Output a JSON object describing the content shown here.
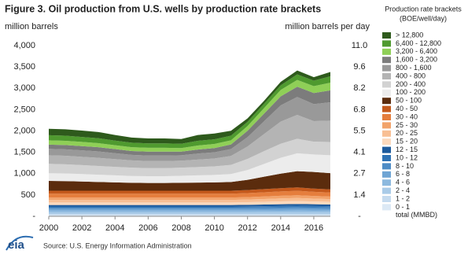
{
  "chart_data": {
    "type": "stacked_area",
    "title": "Figure 3. Oil production from U.S. wells by production rate brackets",
    "y_label": "million barrels",
    "y2_label": "million barrels per day",
    "legend_title": "Production rate brackets",
    "legend_subtitle": "(BOE/well/day)",
    "legend_extra": "total (MMBD)",
    "source": "Source:  U.S. Energy Information Administration",
    "logo": "eia",
    "x": [
      2000,
      2001,
      2002,
      2003,
      2004,
      2005,
      2006,
      2007,
      2008,
      2009,
      2010,
      2011,
      2012,
      2013,
      2014,
      2015,
      2016,
      2017
    ],
    "xlim": [
      2000,
      2017
    ],
    "xticks": [
      2000,
      2002,
      2004,
      2006,
      2008,
      2010,
      2012,
      2014,
      2016
    ],
    "ylim": [
      0,
      4000
    ],
    "yticks": [
      {
        "value": 0,
        "label": "-"
      },
      500,
      {
        "value": 1000,
        "label": "1,000"
      },
      {
        "value": 1500,
        "label": "1,500"
      },
      {
        "value": 2000,
        "label": "2,000"
      },
      {
        "value": 2500,
        "label": "2,500"
      },
      {
        "value": 3000,
        "label": "3,000"
      },
      {
        "value": 3500,
        "label": "3,500"
      },
      {
        "value": 4000,
        "label": "4,000"
      }
    ],
    "y2lim": [
      0,
      10.96
    ],
    "y2ticks": [
      {
        "value": 0,
        "label": "-"
      },
      {
        "value": 1.37,
        "label": "1.4"
      },
      {
        "value": 2.74,
        "label": "2.7"
      },
      {
        "value": 4.11,
        "label": "4.1"
      },
      {
        "value": 5.48,
        "label": "5.5"
      },
      {
        "value": 6.85,
        "label": "6.8"
      },
      {
        "value": 8.22,
        "label": "8.2"
      },
      {
        "value": 9.59,
        "label": "9.6"
      },
      {
        "value": 10.96,
        "label": "11.0"
      }
    ],
    "series": [
      {
        "name": "0 - 1",
        "color": "#dce9f5",
        "values": [
          25,
          25,
          25,
          25,
          25,
          25,
          25,
          25,
          25,
          25,
          25,
          25,
          25,
          25,
          25,
          25,
          25,
          25
        ]
      },
      {
        "name": "1 - 2",
        "color": "#c5dbef",
        "values": [
          25,
          25,
          25,
          25,
          25,
          25,
          25,
          25,
          25,
          25,
          25,
          25,
          25,
          25,
          25,
          25,
          25,
          25
        ]
      },
      {
        "name": "2 - 4",
        "color": "#a9cbe8",
        "values": [
          45,
          45,
          45,
          45,
          45,
          45,
          45,
          45,
          45,
          45,
          45,
          45,
          45,
          46,
          47,
          48,
          47,
          46
        ]
      },
      {
        "name": "4 - 6",
        "color": "#8cb9df",
        "values": [
          40,
          40,
          40,
          40,
          40,
          40,
          40,
          40,
          40,
          40,
          40,
          40,
          40,
          41,
          42,
          43,
          42,
          41
        ]
      },
      {
        "name": "6 - 8",
        "color": "#6ea4d4",
        "values": [
          35,
          35,
          35,
          35,
          35,
          35,
          35,
          35,
          35,
          35,
          35,
          35,
          36,
          37,
          38,
          39,
          38,
          37
        ]
      },
      {
        "name": "8 - 10",
        "color": "#4d8cc6",
        "values": [
          32,
          32,
          32,
          32,
          32,
          32,
          32,
          32,
          32,
          32,
          32,
          32,
          33,
          34,
          35,
          36,
          35,
          34
        ]
      },
      {
        "name": "10 - 12",
        "color": "#2f73b5",
        "values": [
          28,
          28,
          28,
          28,
          28,
          28,
          28,
          28,
          28,
          28,
          28,
          28,
          29,
          30,
          31,
          32,
          31,
          30
        ]
      },
      {
        "name": "12 - 15",
        "color": "#1c5a9c",
        "values": [
          35,
          35,
          35,
          35,
          35,
          35,
          35,
          35,
          35,
          35,
          35,
          35,
          36,
          38,
          40,
          41,
          40,
          38
        ]
      },
      {
        "name": "15 - 20",
        "color": "#fbd9bd",
        "values": [
          60,
          60,
          60,
          60,
          60,
          60,
          60,
          60,
          60,
          60,
          60,
          60,
          62,
          65,
          68,
          70,
          66,
          64
        ]
      },
      {
        "name": "20 - 25",
        "color": "#f8bf94",
        "values": [
          60,
          60,
          60,
          60,
          60,
          60,
          60,
          60,
          60,
          60,
          60,
          60,
          62,
          65,
          68,
          70,
          66,
          64
        ]
      },
      {
        "name": "25 - 30",
        "color": "#f2a36b",
        "values": [
          55,
          55,
          55,
          55,
          55,
          55,
          55,
          55,
          55,
          55,
          55,
          55,
          57,
          60,
          63,
          65,
          61,
          59
        ]
      },
      {
        "name": "30 - 40",
        "color": "#e57e3d",
        "values": [
          90,
          90,
          90,
          90,
          90,
          90,
          90,
          90,
          90,
          90,
          90,
          90,
          93,
          97,
          100,
          103,
          98,
          95
        ]
      },
      {
        "name": "40 - 50",
        "color": "#c4591c",
        "values": [
          70,
          70,
          70,
          70,
          70,
          70,
          70,
          70,
          70,
          70,
          70,
          70,
          72,
          75,
          78,
          80,
          76,
          74
        ]
      },
      {
        "name": "50 - 100",
        "color": "#5b2c0d",
        "values": [
          230,
          225,
          215,
          205,
          195,
          185,
          180,
          180,
          185,
          190,
          195,
          205,
          240,
          290,
          340,
          380,
          390,
          380
        ]
      },
      {
        "name": "100 - 200",
        "color": "#ececec",
        "values": [
          180,
          180,
          175,
          170,
          165,
          160,
          160,
          160,
          165,
          170,
          175,
          185,
          230,
          300,
          370,
          420,
          410,
          420
        ]
      },
      {
        "name": "200 - 400",
        "color": "#d2d2d2",
        "values": [
          220,
          215,
          210,
          205,
          200,
          195,
          190,
          190,
          190,
          195,
          200,
          215,
          260,
          300,
          330,
          340,
          300,
          310
        ]
      },
      {
        "name": "400 - 800",
        "color": "#b4b4b4",
        "values": [
          200,
          200,
          195,
          190,
          180,
          170,
          165,
          165,
          165,
          175,
          185,
          210,
          290,
          400,
          520,
          560,
          480,
          500
        ]
      },
      {
        "name": "800 - 1,600",
        "color": "#999999",
        "values": [
          150,
          150,
          150,
          150,
          140,
          130,
          130,
          130,
          125,
          140,
          145,
          160,
          220,
          300,
          380,
          420,
          400,
          430
        ]
      },
      {
        "name": "1,600 - 3,200",
        "color": "#7c7c7c",
        "values": [
          100,
          100,
          100,
          100,
          95,
          90,
          90,
          90,
          85,
          95,
          100,
          110,
          150,
          180,
          210,
          240,
          260,
          280
        ]
      },
      {
        "name": "3,200 - 6,400",
        "color": "#8fcf57",
        "values": [
          100,
          100,
          100,
          95,
          90,
          90,
          90,
          90,
          85,
          95,
          95,
          95,
          110,
          130,
          150,
          160,
          160,
          180
        ]
      },
      {
        "name": "6,400 - 12,800",
        "color": "#4f9a2f",
        "values": [
          120,
          120,
          115,
          115,
          110,
          105,
          105,
          105,
          100,
          110,
          110,
          110,
          100,
          100,
          110,
          130,
          130,
          150
        ]
      },
      {
        "name": "> 12,800",
        "color": "#2e5a1c",
        "values": [
          150,
          150,
          150,
          145,
          130,
          120,
          115,
          115,
          110,
          135,
          135,
          115,
          80,
          70,
          80,
          90,
          80,
          100
        ]
      }
    ]
  }
}
